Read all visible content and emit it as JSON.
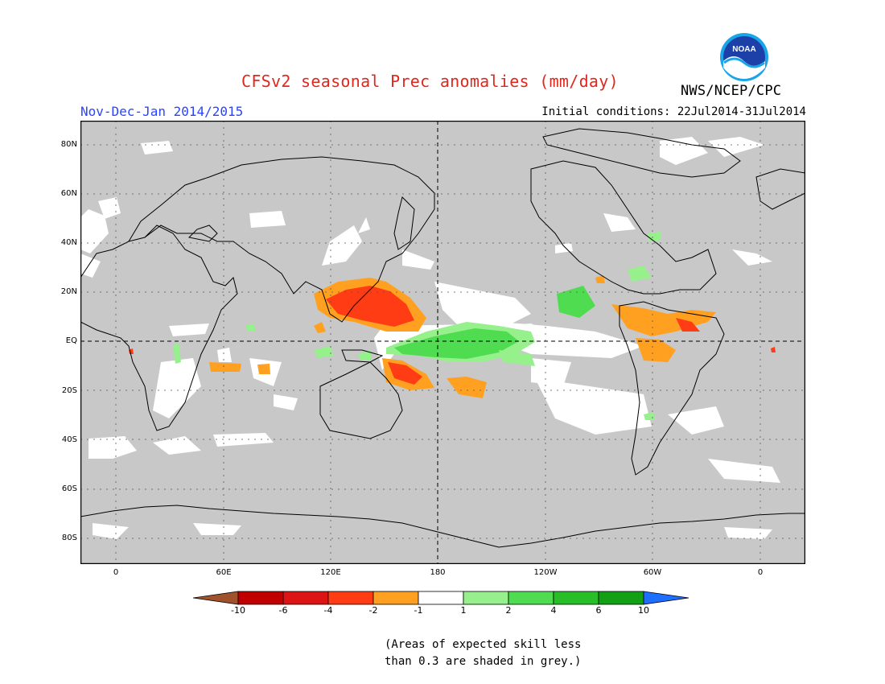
{
  "header": {
    "title": "CFSv2 seasonal Prec anomalies (mm/day)",
    "agency": "NWS/NCEP/CPC",
    "season": "Nov-Dec-Jan 2014/2015",
    "initial_conditions": "Initial conditions: 22Jul2014-31Jul2014",
    "logo_text": "NOAA"
  },
  "map": {
    "lat_labels": [
      "80N",
      "60N",
      "40N",
      "20N",
      "EQ",
      "20S",
      "40S",
      "60S",
      "80S"
    ],
    "lon_labels": [
      "0",
      "60E",
      "120E",
      "180",
      "120W",
      "60W",
      "0"
    ],
    "colors": {
      "no_skill": "#c8c8c8",
      "near_zero": "#ffffff",
      "dry_2": "#ffa020",
      "dry_4": "#ff3c14",
      "wet_1": "#96f08c",
      "wet_2": "#50dc50"
    }
  },
  "colorbar": {
    "ticks": [
      "-10",
      "-6",
      "-4",
      "-2",
      "-1",
      "1",
      "2",
      "4",
      "6",
      "10"
    ],
    "colors": [
      "#a0522d",
      "#c00000",
      "#dc1414",
      "#ff3c14",
      "#ffa020",
      "#ffffff",
      "#96f08c",
      "#50dc50",
      "#28be28",
      "#14a014",
      "#1e6eff"
    ]
  },
  "footnote": {
    "line1": "(Areas of expected skill less",
    "line2": "than 0.3 are shaded in grey.)"
  }
}
